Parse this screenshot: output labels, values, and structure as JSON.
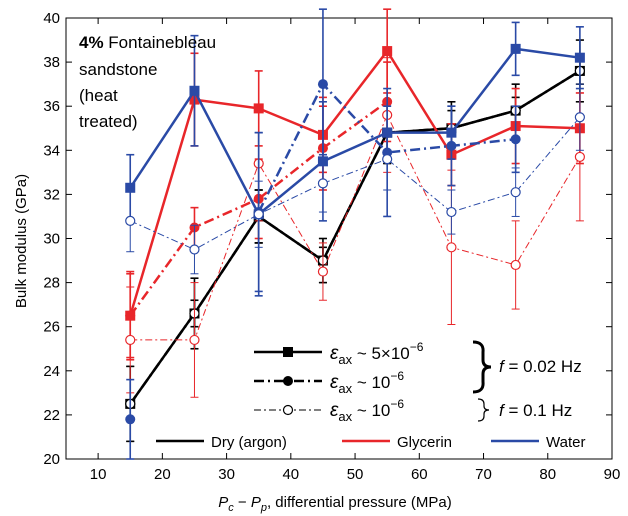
{
  "chart_data": {
    "type": "line",
    "title": "",
    "annotation": {
      "bold": "4%",
      "lines": [
        " Fontainebleau",
        "sandstone",
        "(heat",
        "treated)"
      ]
    },
    "xlabel": {
      "prefix_P": "P",
      "sub_c": "c",
      "minus": " − ",
      "sub_p": "p",
      "suffix": ", differential pressure (MPa)"
    },
    "ylabel": "Bulk modulus (GPa)",
    "xlim": [
      5,
      90
    ],
    "ylim": [
      20,
      40
    ],
    "xticks": [
      10,
      20,
      30,
      40,
      50,
      60,
      70,
      80,
      90
    ],
    "yticks": [
      20,
      22,
      24,
      26,
      28,
      30,
      32,
      34,
      36,
      38,
      40
    ],
    "grid": false,
    "x": [
      15,
      25,
      35,
      45,
      55,
      65,
      75,
      85
    ],
    "colors": {
      "dry": "#000000",
      "glycerin": "#e8262a",
      "water": "#2a4aa6"
    },
    "series": [
      {
        "fluid": "dry",
        "style": "solid",
        "marker": "square",
        "values": [
          22.5,
          26.6,
          31.0,
          29.0,
          34.8,
          35.0,
          35.8,
          37.6
        ],
        "err": [
          [
            22.5,
            22.5
          ],
          [
            26.0,
            27.2
          ],
          [
            29.8,
            32.2
          ],
          [
            28.4,
            29.6
          ],
          [
            34.0,
            35.6
          ],
          [
            34.2,
            35.8
          ],
          [
            35.2,
            36.4
          ],
          [
            37.0,
            38.2
          ]
        ]
      },
      {
        "fluid": "dry",
        "style": "dashdot-thick",
        "marker": "dot",
        "values": [
          22.5,
          26.6,
          31.0,
          29.0,
          34.8,
          35.0,
          35.8,
          37.6
        ],
        "err": [
          [
            20.8,
            24.2
          ],
          [
            25.0,
            28.2
          ],
          [
            29.8,
            32.2
          ],
          [
            28.0,
            30.0
          ],
          [
            33.4,
            36.2
          ],
          [
            33.8,
            36.2
          ],
          [
            34.6,
            37.0
          ],
          [
            36.2,
            39.0
          ]
        ]
      },
      {
        "fluid": "dry",
        "style": "dashdot-thin",
        "marker": "circle",
        "values": [
          22.5,
          26.6,
          31.0,
          29.0,
          34.8,
          35.0,
          35.8,
          37.6
        ],
        "err": [
          [
            20.8,
            24.2
          ],
          [
            25.0,
            28.2
          ],
          [
            29.8,
            32.2
          ],
          [
            28.0,
            30.0
          ],
          [
            33.4,
            36.2
          ],
          [
            33.8,
            36.2
          ],
          [
            34.6,
            37.0
          ],
          [
            36.2,
            39.0
          ]
        ]
      },
      {
        "fluid": "glycerin",
        "style": "solid",
        "marker": "square",
        "values": [
          26.5,
          36.3,
          35.9,
          34.7,
          38.5,
          33.8,
          35.1,
          35.0
        ],
        "err": [
          [
            24.5,
            28.5
          ],
          [
            34.2,
            38.4
          ],
          [
            34.2,
            37.6
          ],
          [
            33.0,
            36.4
          ],
          [
            36.6,
            40.4
          ],
          [
            32.4,
            35.2
          ],
          [
            33.4,
            36.8
          ],
          [
            33.4,
            36.6
          ]
        ]
      },
      {
        "fluid": "glycerin",
        "style": "dashdot-thick",
        "marker": "dot",
        "values": [
          26.5,
          30.5,
          31.8,
          34.1,
          36.2,
          null,
          null,
          null
        ],
        "err": [
          [
            24.6,
            28.4
          ],
          [
            29.6,
            31.4
          ],
          [
            30.0,
            33.6
          ],
          [
            32.2,
            36.0
          ],
          [
            34.4,
            38.0
          ],
          null,
          null,
          null
        ]
      },
      {
        "fluid": "glycerin",
        "style": "dashdot-thin",
        "marker": "circle",
        "values": [
          25.4,
          25.4,
          33.4,
          28.5,
          35.6,
          29.6,
          28.8,
          33.7
        ],
        "err": [
          [
            23.0,
            27.8
          ],
          [
            22.8,
            28.0
          ],
          [
            30.8,
            36.0
          ],
          [
            27.2,
            29.8
          ],
          [
            33.0,
            38.2
          ],
          [
            26.1,
            33.1
          ],
          [
            26.8,
            30.8
          ],
          [
            30.8,
            36.6
          ]
        ]
      },
      {
        "fluid": "water",
        "style": "solid",
        "marker": "square",
        "values": [
          32.3,
          36.7,
          31.1,
          33.5,
          34.8,
          34.8,
          38.6,
          38.2
        ],
        "err": [
          [
            30.8,
            33.8
          ],
          [
            34.2,
            39.2
          ],
          [
            27.4,
            34.8
          ],
          [
            30.8,
            36.2
          ],
          [
            33.6,
            36.0
          ],
          [
            33.6,
            36.0
          ],
          [
            37.4,
            39.8
          ],
          [
            36.8,
            39.6
          ]
        ]
      },
      {
        "fluid": "water",
        "style": "dashdot-thick",
        "marker": "dot",
        "values": [
          21.8,
          null,
          31.2,
          37.0,
          33.9,
          34.2,
          34.5,
          null
        ],
        "err": [
          [
            20.0,
            23.6
          ],
          null,
          [
            27.6,
            34.8
          ],
          [
            33.8,
            40.4
          ],
          [
            31.0,
            36.8
          ],
          [
            32.4,
            36.0
          ],
          [
            33.0,
            36.0
          ],
          null
        ]
      },
      {
        "fluid": "water",
        "style": "dashdot-thin",
        "marker": "circle",
        "values": [
          30.8,
          29.5,
          31.1,
          32.5,
          33.6,
          31.2,
          32.1,
          35.5
        ],
        "err": [
          [
            29.4,
            32.2
          ],
          [
            28.4,
            30.6
          ],
          [
            29.6,
            32.6
          ],
          [
            31.2,
            33.8
          ],
          [
            32.2,
            35.0
          ],
          [
            30.2,
            32.2
          ],
          [
            31.0,
            33.2
          ],
          [
            34.0,
            37.0
          ]
        ]
      }
    ],
    "legend_styles": {
      "entries": [
        {
          "style": "solid",
          "marker": "square",
          "eps": "ε",
          "sub": "ax",
          "tilde": " ~ 5×10",
          "exp": "−6"
        },
        {
          "style": "dashdot-thick",
          "marker": "dot",
          "eps": "ε",
          "sub": "ax",
          "tilde": " ~ 10",
          "exp": "−6"
        },
        {
          "style": "dashdot-thin",
          "marker": "circle",
          "eps": "ε",
          "sub": "ax",
          "tilde": " ~ 10",
          "exp": "−6"
        }
      ],
      "freq_1": {
        "f": "f",
        "rest": " = 0.02 Hz"
      },
      "freq_2": {
        "f": "f",
        "rest": " = 0.1 Hz"
      }
    },
    "legend_fluids": [
      "Dry (argon)",
      "Glycerin",
      "Water"
    ],
    "legend_placement": "bottom"
  }
}
